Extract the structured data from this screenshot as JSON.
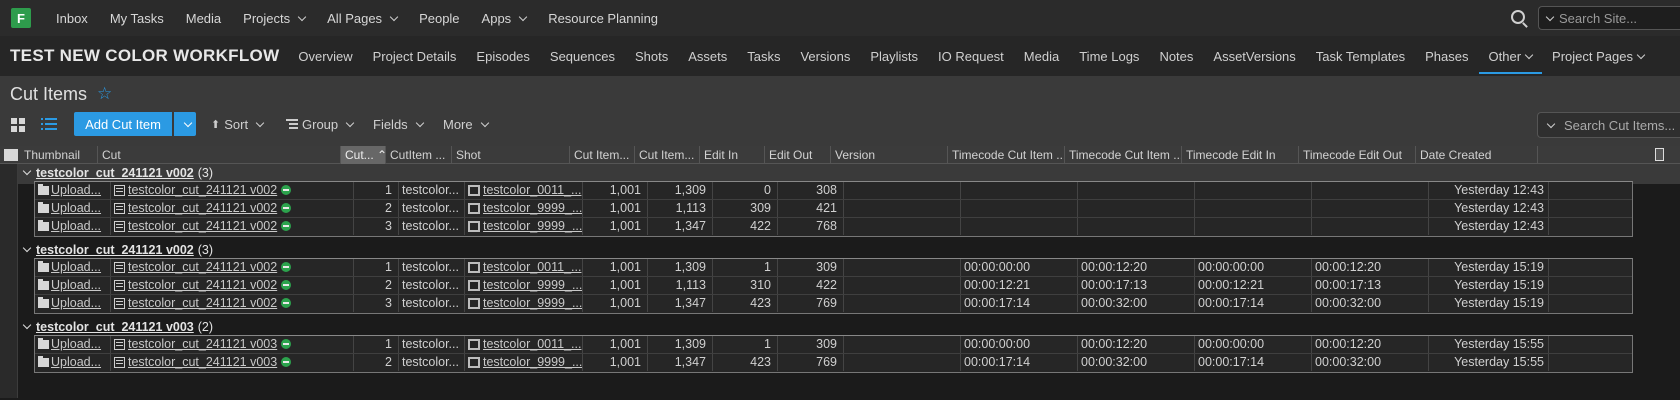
{
  "app": {
    "logo_letter": "F",
    "brand_color": "#2e9c4c",
    "accent_color": "#2b9ae3"
  },
  "topnav": {
    "items": [
      {
        "label": "Inbox",
        "dropdown": false
      },
      {
        "label": "My Tasks",
        "dropdown": false
      },
      {
        "label": "Media",
        "dropdown": false
      },
      {
        "label": "Projects",
        "dropdown": true
      },
      {
        "label": "All Pages",
        "dropdown": true
      },
      {
        "label": "People",
        "dropdown": false
      },
      {
        "label": "Apps",
        "dropdown": true
      },
      {
        "label": "Resource Planning",
        "dropdown": false
      }
    ],
    "search_placeholder": "Search Site..."
  },
  "project": {
    "title": "TEST NEW COLOR WORKFLOW",
    "tabs": [
      "Overview",
      "Project Details",
      "Episodes",
      "Sequences",
      "Shots",
      "Assets",
      "Tasks",
      "Versions",
      "Playlists",
      "IO Request",
      "Media",
      "Time Logs",
      "Notes",
      "AssetVersions",
      "Task Templates",
      "Phases",
      "Other",
      "Project Pages"
    ],
    "active_tab": "Other"
  },
  "page": {
    "title": "Cut Items",
    "star": "☆",
    "add_button": "Add Cut Item",
    "toolbar": {
      "sort": "Sort",
      "group": "Group",
      "fields": "Fields",
      "more": "More"
    },
    "search_placeholder": "Search Cut Items..."
  },
  "table": {
    "columns": [
      "Thumbnail",
      "Cut",
      "Cut...",
      "CutItem ...",
      "Shot",
      "Cut Item...",
      "Cut Item...",
      "Edit In",
      "Edit Out",
      "Version",
      "Timecode Cut Item ...",
      "Timecode Cut Item ...",
      "Timecode Edit In",
      "Timecode Edit Out",
      "Date Created"
    ],
    "sorted_column": "Cut...",
    "groups": [
      {
        "name": "testcolor_cut_241121 v002",
        "count": "(3)",
        "rows": [
          {
            "thumb": "Upload...",
            "cut": "testcolor_cut_241121 v002",
            "order": "1",
            "code": "testcolor...",
            "shot": "testcolor_0011_...",
            "cin": "1,001",
            "cout": "1,309",
            "ein": "0",
            "eout": "308",
            "version": "",
            "tc_in": "",
            "tc_out": "",
            "tc_ein": "",
            "tc_eout": "",
            "date": "Yesterday 12:43"
          },
          {
            "thumb": "Upload...",
            "cut": "testcolor_cut_241121 v002",
            "order": "2",
            "code": "testcolor...",
            "shot": "testcolor_9999_...",
            "cin": "1,001",
            "cout": "1,113",
            "ein": "309",
            "eout": "421",
            "version": "",
            "tc_in": "",
            "tc_out": "",
            "tc_ein": "",
            "tc_eout": "",
            "date": "Yesterday 12:43"
          },
          {
            "thumb": "Upload...",
            "cut": "testcolor_cut_241121 v002",
            "order": "3",
            "code": "testcolor...",
            "shot": "testcolor_9999_...",
            "cin": "1,001",
            "cout": "1,347",
            "ein": "422",
            "eout": "768",
            "version": "",
            "tc_in": "",
            "tc_out": "",
            "tc_ein": "",
            "tc_eout": "",
            "date": "Yesterday 12:43"
          }
        ]
      },
      {
        "name": "testcolor_cut_241121 v002",
        "count": "(3)",
        "rows": [
          {
            "thumb": "Upload...",
            "cut": "testcolor_cut_241121 v002",
            "order": "1",
            "code": "testcolor...",
            "shot": "testcolor_0011_...",
            "cin": "1,001",
            "cout": "1,309",
            "ein": "1",
            "eout": "309",
            "version": "",
            "tc_in": "00:00:00:00",
            "tc_out": "00:00:12:20",
            "tc_ein": "00:00:00:00",
            "tc_eout": "00:00:12:20",
            "date": "Yesterday 15:19"
          },
          {
            "thumb": "Upload...",
            "cut": "testcolor_cut_241121 v002",
            "order": "2",
            "code": "testcolor...",
            "shot": "testcolor_9999_...",
            "cin": "1,001",
            "cout": "1,113",
            "ein": "310",
            "eout": "422",
            "version": "",
            "tc_in": "00:00:12:21",
            "tc_out": "00:00:17:13",
            "tc_ein": "00:00:12:21",
            "tc_eout": "00:00:17:13",
            "date": "Yesterday 15:19"
          },
          {
            "thumb": "Upload...",
            "cut": "testcolor_cut_241121 v002",
            "order": "3",
            "code": "testcolor...",
            "shot": "testcolor_9999_...",
            "cin": "1,001",
            "cout": "1,347",
            "ein": "423",
            "eout": "769",
            "version": "",
            "tc_in": "00:00:17:14",
            "tc_out": "00:00:32:00",
            "tc_ein": "00:00:17:14",
            "tc_eout": "00:00:32:00",
            "date": "Yesterday 15:19"
          }
        ]
      },
      {
        "name": "testcolor_cut_241121 v003",
        "count": "(2)",
        "rows": [
          {
            "thumb": "Upload...",
            "cut": "testcolor_cut_241121 v003",
            "order": "1",
            "code": "testcolor...",
            "shot": "testcolor_0011_...",
            "cin": "1,001",
            "cout": "1,309",
            "ein": "1",
            "eout": "309",
            "version": "",
            "tc_in": "00:00:00:00",
            "tc_out": "00:00:12:20",
            "tc_ein": "00:00:00:00",
            "tc_eout": "00:00:12:20",
            "date": "Yesterday 15:55"
          },
          {
            "thumb": "Upload...",
            "cut": "testcolor_cut_241121 v003",
            "order": "2",
            "code": "testcolor...",
            "shot": "testcolor_9999_...",
            "cin": "1,001",
            "cout": "1,347",
            "ein": "423",
            "eout": "769",
            "version": "",
            "tc_in": "00:00:17:14",
            "tc_out": "00:00:32:00",
            "tc_ein": "00:00:17:14",
            "tc_eout": "00:00:32:00",
            "date": "Yesterday 15:55"
          }
        ]
      }
    ]
  }
}
